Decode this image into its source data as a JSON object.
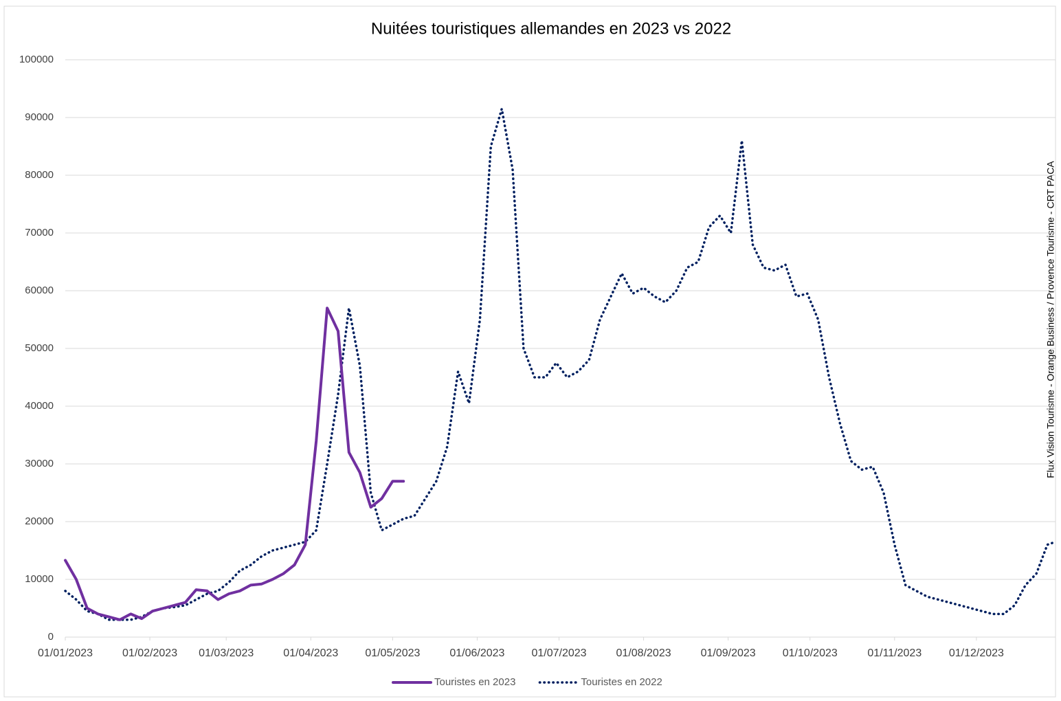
{
  "chart_data": {
    "type": "line",
    "title": "Nuitées touristiques allemandes en 2023 vs 2022",
    "source": "Flux Vision Tourisme - Orange Business / Provence Tourisme - CRT PACA",
    "x": [
      "01/01/2023",
      "05/01/2023",
      "09/01/2023",
      "13/01/2023",
      "17/01/2023",
      "21/01/2023",
      "25/01/2023",
      "29/01/2023",
      "02/02/2023",
      "06/02/2023",
      "10/02/2023",
      "14/02/2023",
      "18/02/2023",
      "22/02/2023",
      "26/02/2023",
      "02/03/2023",
      "06/03/2023",
      "10/03/2023",
      "14/03/2023",
      "18/03/2023",
      "22/03/2023",
      "26/03/2023",
      "30/03/2023",
      "03/04/2023",
      "07/04/2023",
      "11/04/2023",
      "15/04/2023",
      "19/04/2023",
      "23/04/2023",
      "27/04/2023",
      "01/05/2023",
      "05/05/2023",
      "09/05/2023",
      "13/05/2023",
      "17/05/2023",
      "21/05/2023",
      "25/05/2023",
      "29/05/2023",
      "02/06/2023",
      "06/06/2023",
      "10/06/2023",
      "14/06/2023",
      "18/06/2023",
      "22/06/2023",
      "26/06/2023",
      "30/06/2023",
      "04/07/2023",
      "08/07/2023",
      "12/07/2023",
      "16/07/2023",
      "20/07/2023",
      "24/07/2023",
      "28/07/2023",
      "01/08/2023",
      "05/08/2023",
      "09/08/2023",
      "13/08/2023",
      "17/08/2023",
      "21/08/2023",
      "25/08/2023",
      "29/08/2023",
      "02/09/2023",
      "06/09/2023",
      "10/09/2023",
      "14/09/2023",
      "18/09/2023",
      "22/09/2023",
      "26/09/2023",
      "30/09/2023",
      "04/10/2023",
      "08/10/2023",
      "12/10/2023",
      "16/10/2023",
      "20/10/2023",
      "24/10/2023",
      "28/10/2023",
      "01/11/2023",
      "05/11/2023",
      "09/11/2023",
      "13/11/2023",
      "17/11/2023",
      "21/11/2023",
      "25/11/2023",
      "29/11/2023",
      "03/12/2023",
      "07/12/2023",
      "11/12/2023",
      "15/12/2023",
      "19/12/2023",
      "23/12/2023",
      "27/12/2023",
      "30/12/2023"
    ],
    "series": [
      {
        "name": "Touristes en 2023",
        "color": "#7030a0",
        "style": "solid",
        "values": [
          13300,
          10000,
          5000,
          4000,
          3500,
          3000,
          4000,
          3200,
          4500,
          5000,
          5500,
          6000,
          8200,
          8000,
          6500,
          7500,
          8000,
          9000,
          9200,
          10000,
          11000,
          12500,
          16000,
          34000,
          57000,
          53000,
          32000,
          28500,
          22500,
          24000,
          27000,
          27000,
          null,
          null,
          null,
          null,
          null,
          null,
          null,
          null,
          null,
          null,
          null,
          null,
          null,
          null,
          null,
          null,
          null,
          null,
          null,
          null,
          null,
          null,
          null,
          null,
          null,
          null,
          null,
          null,
          null,
          null,
          null,
          null,
          null,
          null,
          null,
          null,
          null,
          null,
          null,
          null,
          null,
          null,
          null,
          null,
          null,
          null,
          null,
          null,
          null,
          null,
          null,
          null,
          null,
          null,
          null,
          null,
          null,
          null,
          null,
          null
        ]
      },
      {
        "name": "Touristes en 2022",
        "color": "#002060",
        "style": "dotted",
        "values": [
          8000,
          6500,
          4500,
          4000,
          3000,
          3000,
          3000,
          3500,
          4500,
          5000,
          5200,
          5500,
          6500,
          7500,
          8000,
          9500,
          11500,
          12500,
          14000,
          15000,
          15500,
          16000,
          16500,
          18500,
          30000,
          42000,
          57000,
          47000,
          25000,
          18500,
          19500,
          20500,
          21000,
          24000,
          27000,
          33000,
          46000,
          40500,
          55000,
          85000,
          91500,
          81000,
          50000,
          45000,
          45000,
          47500,
          45000,
          46000,
          48000,
          55000,
          59000,
          63000,
          59500,
          60500,
          59000,
          58000,
          60000,
          64000,
          65000,
          71000,
          73000,
          70000,
          86000,
          68000,
          64000,
          63500,
          64500,
          59000,
          59500,
          55000,
          45000,
          37000,
          30500,
          29000,
          29500,
          25000,
          16000,
          9000,
          8000,
          7000,
          6500,
          6000,
          5500,
          5000,
          4500,
          4000,
          4000,
          5500,
          9000,
          11000,
          16000,
          16500
        ]
      }
    ],
    "xlim": [
      "01/01/2023",
      "30/12/2023"
    ],
    "xticks": [
      "01/01/2023",
      "01/02/2023",
      "01/03/2023",
      "01/04/2023",
      "01/05/2023",
      "01/06/2023",
      "01/07/2023",
      "01/08/2023",
      "01/09/2023",
      "01/10/2023",
      "01/11/2023",
      "01/12/2023"
    ],
    "ylim": [
      0,
      100000
    ],
    "yticks": [
      0,
      10000,
      20000,
      30000,
      40000,
      50000,
      60000,
      70000,
      80000,
      90000,
      100000
    ],
    "grid": true,
    "legend": "bottom"
  }
}
